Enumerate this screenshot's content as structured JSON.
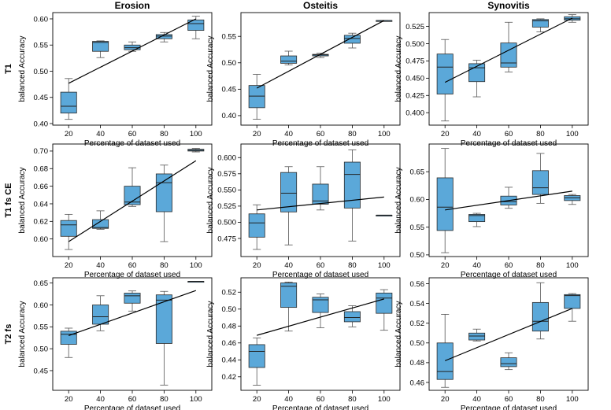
{
  "figure": {
    "col_titles": [
      "Erosion",
      "Osteitis",
      "Synovitis"
    ],
    "row_labels": [
      "T1",
      "T1 fs CE",
      "T2 fs"
    ],
    "box_color": "#5ba8d9",
    "edge_color": "#2b2b2b",
    "line_color": "#000000"
  },
  "chart_data": [
    {
      "type": "box",
      "panel": "T1 / Erosion",
      "xlabel": "Percentage of dataset used",
      "ylabel": "balanced Accuracy",
      "categories": [
        "20",
        "40",
        "60",
        "80",
        "100"
      ],
      "ylim": [
        0.397,
        0.612
      ],
      "yticks": [
        0.4,
        0.45,
        0.5,
        0.55,
        0.6
      ],
      "ydec": 2,
      "boxes": [
        {
          "x": "20",
          "whislo": 0.408,
          "q1": 0.42,
          "med": 0.433,
          "q3": 0.46,
          "whishi": 0.486
        },
        {
          "x": "40",
          "whislo": 0.526,
          "q1": 0.538,
          "med": 0.555,
          "q3": 0.557,
          "whishi": 0.558
        },
        {
          "x": "60",
          "whislo": 0.538,
          "q1": 0.541,
          "med": 0.545,
          "q3": 0.55,
          "whishi": 0.556
        },
        {
          "x": "80",
          "whislo": 0.556,
          "q1": 0.562,
          "med": 0.567,
          "q3": 0.57,
          "whishi": 0.574
        },
        {
          "x": "100",
          "whislo": 0.562,
          "q1": 0.578,
          "med": 0.591,
          "q3": 0.598,
          "whishi": 0.605
        }
      ],
      "trend": [
        0.477,
        0.6
      ]
    },
    {
      "type": "box",
      "panel": "T1 / Osteitis",
      "xlabel": "Percentage of dataset used",
      "ylabel": "balanced Accuracy",
      "categories": [
        "20",
        "40",
        "60",
        "80",
        "100"
      ],
      "ylim": [
        0.382,
        0.595
      ],
      "yticks": [
        0.4,
        0.45,
        0.5,
        0.55
      ],
      "ydec": 2,
      "boxes": [
        {
          "x": "20",
          "whislo": 0.393,
          "q1": 0.415,
          "med": 0.437,
          "q3": 0.457,
          "whishi": 0.478
        },
        {
          "x": "40",
          "whislo": 0.496,
          "q1": 0.499,
          "med": 0.503,
          "q3": 0.513,
          "whishi": 0.522
        },
        {
          "x": "60",
          "whislo": 0.51,
          "q1": 0.513,
          "med": 0.515,
          "q3": 0.516,
          "whishi": 0.518
        },
        {
          "x": "80",
          "whislo": 0.528,
          "q1": 0.537,
          "med": 0.546,
          "q3": 0.552,
          "whishi": 0.556
        },
        {
          "x": "100",
          "whislo": 0.58,
          "q1": 0.58,
          "med": 0.58,
          "q3": 0.58,
          "whishi": 0.58
        }
      ],
      "trend": [
        0.452,
        0.58
      ]
    },
    {
      "type": "box",
      "panel": "T1 / Synovitis",
      "xlabel": "Percentage of dataset used",
      "ylabel": "balanced Accuracy",
      "categories": [
        "20",
        "40",
        "60",
        "80",
        "100"
      ],
      "ylim": [
        0.382,
        0.545
      ],
      "yticks": [
        0.4,
        0.425,
        0.45,
        0.475,
        0.5,
        0.525
      ],
      "ydec": 3,
      "boxes": [
        {
          "x": "20",
          "whislo": 0.388,
          "q1": 0.427,
          "med": 0.466,
          "q3": 0.485,
          "whishi": 0.506
        },
        {
          "x": "40",
          "whislo": 0.423,
          "q1": 0.445,
          "med": 0.465,
          "q3": 0.471,
          "whishi": 0.476
        },
        {
          "x": "60",
          "whislo": 0.459,
          "q1": 0.466,
          "med": 0.472,
          "q3": 0.501,
          "whishi": 0.531
        },
        {
          "x": "80",
          "whislo": 0.517,
          "q1": 0.524,
          "med": 0.533,
          "q3": 0.535,
          "whishi": 0.536
        },
        {
          "x": "100",
          "whislo": 0.531,
          "q1": 0.534,
          "med": 0.536,
          "q3": 0.539,
          "whishi": 0.542
        }
      ],
      "trend": [
        0.444,
        0.537
      ]
    },
    {
      "type": "box",
      "panel": "T1 fs CE / Erosion",
      "xlabel": "Percentage of dataset used",
      "ylabel": "balanced Accuracy",
      "categories": [
        "20",
        "40",
        "60",
        "80",
        "100"
      ],
      "ylim": [
        0.58,
        0.708
      ],
      "yticks": [
        0.6,
        0.62,
        0.64,
        0.66,
        0.68,
        0.7
      ],
      "ydec": 2,
      "boxes": [
        {
          "x": "20",
          "whislo": 0.588,
          "q1": 0.603,
          "med": 0.616,
          "q3": 0.621,
          "whishi": 0.628
        },
        {
          "x": "40",
          "whislo": 0.611,
          "q1": 0.612,
          "med": 0.613,
          "q3": 0.622,
          "whishi": 0.632
        },
        {
          "x": "60",
          "whislo": 0.637,
          "q1": 0.639,
          "med": 0.642,
          "q3": 0.66,
          "whishi": 0.681
        },
        {
          "x": "80",
          "whislo": 0.597,
          "q1": 0.631,
          "med": 0.664,
          "q3": 0.674,
          "whishi": 0.684
        },
        {
          "x": "100",
          "whislo": 0.699,
          "q1": 0.7,
          "med": 0.701,
          "q3": 0.702,
          "whishi": 0.703
        }
      ],
      "trend": [
        0.597,
        0.689
      ]
    },
    {
      "type": "box",
      "panel": "T1 fs CE / Osteitis",
      "xlabel": "Percentage of dataset used",
      "ylabel": "balanced Accuracy",
      "categories": [
        "20",
        "40",
        "60",
        "80",
        "100"
      ],
      "ylim": [
        0.447,
        0.621
      ],
      "yticks": [
        0.475,
        0.5,
        0.525,
        0.55,
        0.575,
        0.6
      ],
      "ydec": 3,
      "boxes": [
        {
          "x": "20",
          "whislo": 0.458,
          "q1": 0.477,
          "med": 0.499,
          "q3": 0.513,
          "whishi": 0.527
        },
        {
          "x": "40",
          "whislo": 0.465,
          "q1": 0.516,
          "med": 0.545,
          "q3": 0.577,
          "whishi": 0.586
        },
        {
          "x": "60",
          "whislo": 0.519,
          "q1": 0.528,
          "med": 0.533,
          "q3": 0.559,
          "whishi": 0.586
        },
        {
          "x": "80",
          "whislo": 0.471,
          "q1": 0.522,
          "med": 0.574,
          "q3": 0.593,
          "whishi": 0.612
        },
        {
          "x": "100",
          "whislo": 0.511,
          "q1": 0.511,
          "med": 0.511,
          "q3": 0.511,
          "whishi": 0.511
        }
      ],
      "trend": [
        0.519,
        0.539
      ]
    },
    {
      "type": "box",
      "panel": "T1 fs CE / Synovitis",
      "xlabel": "Percentage of dataset used",
      "ylabel": "balanced Accuracy",
      "categories": [
        "20",
        "40",
        "60",
        "80",
        "100"
      ],
      "ylim": [
        0.497,
        0.7
      ],
      "yticks": [
        0.5,
        0.55,
        0.6,
        0.65
      ],
      "ydec": 2,
      "boxes": [
        {
          "x": "20",
          "whislo": 0.504,
          "q1": 0.544,
          "med": 0.586,
          "q3": 0.639,
          "whishi": 0.692
        },
        {
          "x": "40",
          "whislo": 0.551,
          "q1": 0.56,
          "med": 0.571,
          "q3": 0.573,
          "whishi": 0.575
        },
        {
          "x": "60",
          "whislo": 0.584,
          "q1": 0.59,
          "med": 0.596,
          "q3": 0.606,
          "whishi": 0.622
        },
        {
          "x": "80",
          "whislo": 0.593,
          "q1": 0.609,
          "med": 0.621,
          "q3": 0.652,
          "whishi": 0.683
        },
        {
          "x": "100",
          "whislo": 0.591,
          "q1": 0.598,
          "med": 0.603,
          "q3": 0.607,
          "whishi": 0.609
        }
      ],
      "trend": [
        0.581,
        0.615
      ]
    },
    {
      "type": "box",
      "panel": "T2 fs / Erosion",
      "xlabel": "Percentage of dataset used",
      "ylabel": "balanced Accuracy",
      "categories": [
        "20",
        "40",
        "60",
        "80",
        "100"
      ],
      "ylim": [
        0.405,
        0.662
      ],
      "yticks": [
        0.45,
        0.5,
        0.55,
        0.6,
        0.65
      ],
      "ydec": 2,
      "boxes": [
        {
          "x": "20",
          "whislo": 0.48,
          "q1": 0.51,
          "med": 0.533,
          "q3": 0.54,
          "whishi": 0.547
        },
        {
          "x": "40",
          "whislo": 0.541,
          "q1": 0.556,
          "med": 0.573,
          "q3": 0.6,
          "whishi": 0.621
        },
        {
          "x": "60",
          "whislo": 0.586,
          "q1": 0.604,
          "med": 0.621,
          "q3": 0.627,
          "whishi": 0.632
        },
        {
          "x": "80",
          "whislo": 0.417,
          "q1": 0.512,
          "med": 0.611,
          "q3": 0.623,
          "whishi": 0.631
        },
        {
          "x": "100",
          "whislo": 0.654,
          "q1": 0.654,
          "med": 0.654,
          "q3": 0.654,
          "whishi": 0.654
        }
      ],
      "trend": [
        0.53,
        0.633
      ]
    },
    {
      "type": "box",
      "panel": "T2 fs / Osteitis",
      "xlabel": "Percentage of dataset used",
      "ylabel": "balanced Accuracy",
      "categories": [
        "20",
        "40",
        "60",
        "80",
        "100"
      ],
      "ylim": [
        0.404,
        0.537
      ],
      "yticks": [
        0.42,
        0.44,
        0.46,
        0.48,
        0.5,
        0.52
      ],
      "ydec": 2,
      "boxes": [
        {
          "x": "20",
          "whislo": 0.41,
          "q1": 0.431,
          "med": 0.45,
          "q3": 0.458,
          "whishi": 0.466
        },
        {
          "x": "40",
          "whislo": 0.474,
          "q1": 0.502,
          "med": 0.527,
          "q3": 0.531,
          "whishi": 0.532
        },
        {
          "x": "60",
          "whislo": 0.478,
          "q1": 0.496,
          "med": 0.511,
          "q3": 0.514,
          "whishi": 0.518
        },
        {
          "x": "80",
          "whislo": 0.479,
          "q1": 0.485,
          "med": 0.49,
          "q3": 0.497,
          "whishi": 0.504
        },
        {
          "x": "100",
          "whislo": 0.475,
          "q1": 0.495,
          "med": 0.513,
          "q3": 0.519,
          "whishi": 0.523
        }
      ],
      "trend": [
        0.469,
        0.512
      ]
    },
    {
      "type": "box",
      "panel": "T2 fs / Synovitis",
      "xlabel": "Percentage of dataset used",
      "ylabel": "balanced Accuracy",
      "categories": [
        "20",
        "40",
        "60",
        "80",
        "100"
      ],
      "ylim": [
        0.452,
        0.566
      ],
      "yticks": [
        0.46,
        0.48,
        0.5,
        0.52,
        0.54,
        0.56
      ],
      "ydec": 2,
      "boxes": [
        {
          "x": "20",
          "whislo": 0.455,
          "q1": 0.463,
          "med": 0.471,
          "q3": 0.5,
          "whishi": 0.529
        },
        {
          "x": "40",
          "whislo": 0.502,
          "q1": 0.503,
          "med": 0.507,
          "q3": 0.51,
          "whishi": 0.514
        },
        {
          "x": "60",
          "whislo": 0.473,
          "q1": 0.476,
          "med": 0.479,
          "q3": 0.485,
          "whishi": 0.49
        },
        {
          "x": "80",
          "whislo": 0.504,
          "q1": 0.512,
          "med": 0.522,
          "q3": 0.541,
          "whishi": 0.561
        },
        {
          "x": "100",
          "whislo": 0.522,
          "q1": 0.535,
          "med": 0.548,
          "q3": 0.549,
          "whishi": 0.55
        }
      ],
      "trend": [
        0.482,
        0.535
      ]
    }
  ]
}
